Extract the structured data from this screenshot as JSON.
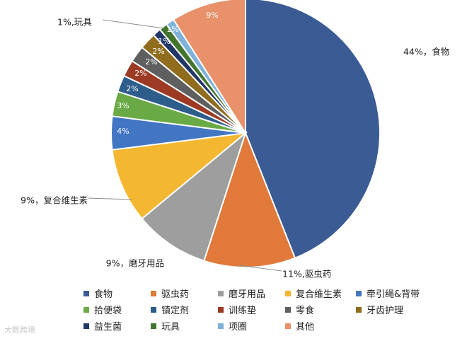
{
  "chart_data": {
    "type": "pie",
    "categories": [
      "食物",
      "驱虫药",
      "磨牙用品",
      "复合维生素",
      "牵引绳&背带",
      "拾便袋",
      "镇定剂",
      "训练垫",
      "零食",
      "牙齿护理",
      "益生菌",
      "玩具",
      "项圈",
      "其他"
    ],
    "values": [
      44,
      11,
      9,
      9,
      4,
      3,
      2,
      2,
      2,
      2,
      1,
      1,
      1,
      9
    ],
    "labels": [
      "44%，食物",
      "11%,驱虫药",
      "9%，磨牙用品",
      "9%，复合维生素",
      "4%",
      "3%",
      "2%",
      "2%",
      "2%",
      "2%",
      "1%",
      "1%",
      "1%",
      "9%"
    ],
    "toy_label": "1%,玩具",
    "colors": [
      "#3a5b93",
      "#e0793a",
      "#9e9e9e",
      "#f4b731",
      "#4276c3",
      "#6aaa46",
      "#2d5d8b",
      "#9d3a23",
      "#5f5f5f",
      "#8f6d1d",
      "#213766",
      "#43752d",
      "#7fb2d9",
      "#e8916a"
    ],
    "legend_placement": "bottom"
  },
  "watermark": "大数跨境"
}
